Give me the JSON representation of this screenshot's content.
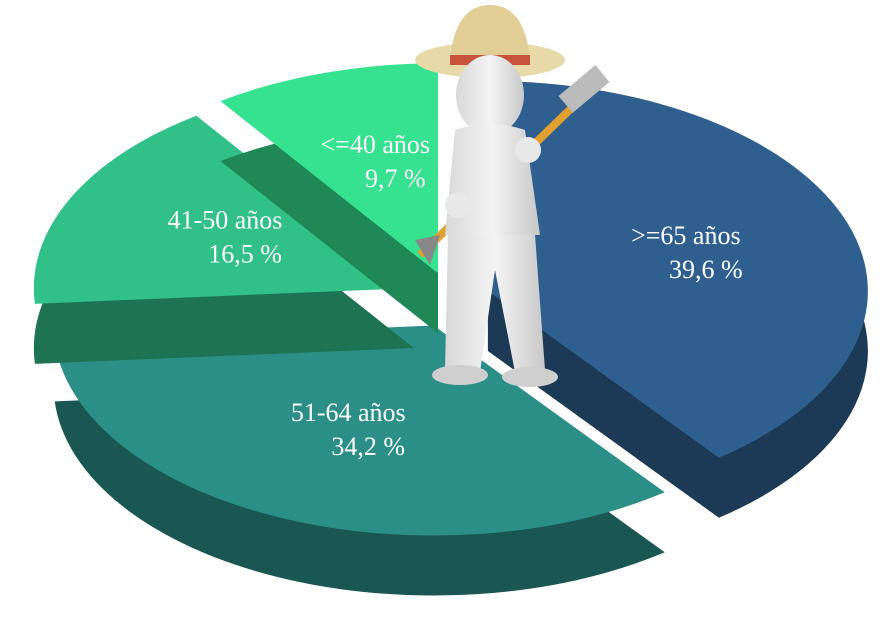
{
  "chart_data": {
    "type": "pie",
    "categories": [
      ">=65 años",
      "51-64 años",
      "41-50 años",
      "<=40 años"
    ],
    "values": [
      39.6,
      34.2,
      16.5,
      9.7
    ],
    "value_labels": [
      "39,6 %",
      "34,2 %",
      "16,5 %",
      "9,7 %"
    ],
    "colors": [
      "#2f5f8f",
      "#2b8f88",
      "#30c088",
      "#36e28f"
    ]
  }
}
